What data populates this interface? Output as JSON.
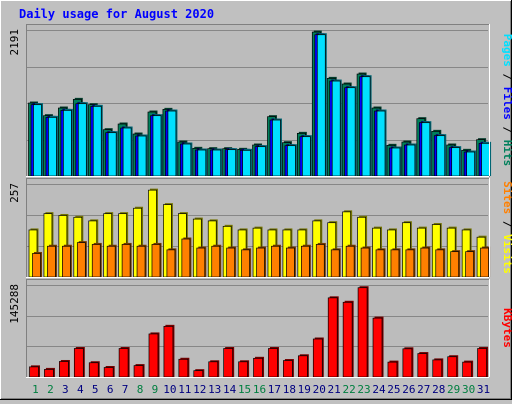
{
  "chart_data": {
    "type": "bar",
    "title": "Daily usage for August 2020",
    "categories": [
      "1",
      "2",
      "3",
      "4",
      "5",
      "6",
      "7",
      "8",
      "9",
      "10",
      "11",
      "12",
      "13",
      "14",
      "15",
      "16",
      "17",
      "18",
      "19",
      "20",
      "21",
      "22",
      "23",
      "24",
      "25",
      "26",
      "27",
      "28",
      "29",
      "30",
      "31"
    ],
    "weekend_days": [
      "1",
      "2",
      "8",
      "9",
      "15",
      "16",
      "22",
      "23",
      "29",
      "30"
    ],
    "panels": [
      {
        "ylim": [
          0,
          2191
        ],
        "max_label": "2191",
        "axis_label_parts": [
          "Pages",
          "Files",
          "Hits"
        ],
        "series": [
          {
            "name": "Hits",
            "color": "#00805c",
            "values": [
              1095,
              905,
              1020,
              1150,
              1070,
              695,
              780,
              630,
              960,
              1000,
              510,
              415,
              410,
              410,
              400,
              465,
              890,
              500,
              640,
              2160,
              1465,
              1380,
              1530,
              1020,
              460,
              510,
              860,
              670,
              465,
              385,
              545
            ]
          },
          {
            "name": "Files",
            "color": "#0000ff",
            "values": [
              1070,
              880,
              985,
              1085,
              1045,
              650,
              720,
              600,
              905,
              975,
              480,
              390,
              390,
              395,
              385,
              440,
              840,
              455,
              590,
              2120,
              1425,
              1325,
              1490,
              975,
              420,
              465,
              800,
              605,
              425,
              360,
              490
            ]
          },
          {
            "name": "Pages",
            "color": "#00e0ff",
            "values": [
              1070,
              880,
              985,
              1085,
              1045,
              650,
              720,
              600,
              905,
              975,
              480,
              390,
              390,
              395,
              385,
              440,
              840,
              455,
              590,
              2120,
              1425,
              1325,
              1490,
              975,
              420,
              465,
              800,
              605,
              425,
              360,
              490
            ]
          }
        ]
      },
      {
        "ylim": [
          0,
          257
        ],
        "max_label": "257",
        "axis_label_parts": [
          "Sites",
          "Visits"
        ],
        "series": [
          {
            "name": "Visits",
            "color": "#ffff00",
            "values": [
              130,
              175,
              170,
              165,
              155,
              175,
              175,
              190,
              240,
              200,
              175,
              160,
              155,
              140,
              130,
              135,
              130,
              130,
              130,
              155,
              150,
              180,
              165,
              135,
              130,
              150,
              135,
              145,
              135,
              130,
              110
            ]
          },
          {
            "name": "Sites",
            "color": "#ff8000",
            "values": [
              65,
              85,
              85,
              95,
              90,
              85,
              90,
              85,
              90,
              75,
              105,
              80,
              85,
              80,
              75,
              80,
              85,
              80,
              85,
              90,
              75,
              85,
              80,
              75,
              75,
              75,
              80,
              75,
              70,
              70,
              80
            ]
          }
        ]
      },
      {
        "ylim": [
          0,
          145288
        ],
        "max_label": "145288",
        "axis_label_parts": [
          "KBytes"
        ],
        "series": [
          {
            "name": "KBytes",
            "color": "#ff0000",
            "values": [
              16000,
              12000,
              24500,
              45000,
              22500,
              15000,
              45000,
              18000,
              68000,
              80000,
              28000,
              10000,
              24000,
              45000,
              24000,
              29500,
              45000,
              26000,
              33500,
              60000,
              125000,
              118000,
              141000,
              93000,
              23500,
              44500,
              37000,
              27000,
              32000,
              23500,
              45000
            ]
          }
        ]
      }
    ],
    "colors": {
      "background": "#c0c0c0",
      "plot_background": "#bcbcbc",
      "gridline": "#878787",
      "title": "#0000ff",
      "weekday_label": "#000080",
      "weekend_label": "#007f40",
      "axis_label_separator": "#000000"
    }
  }
}
